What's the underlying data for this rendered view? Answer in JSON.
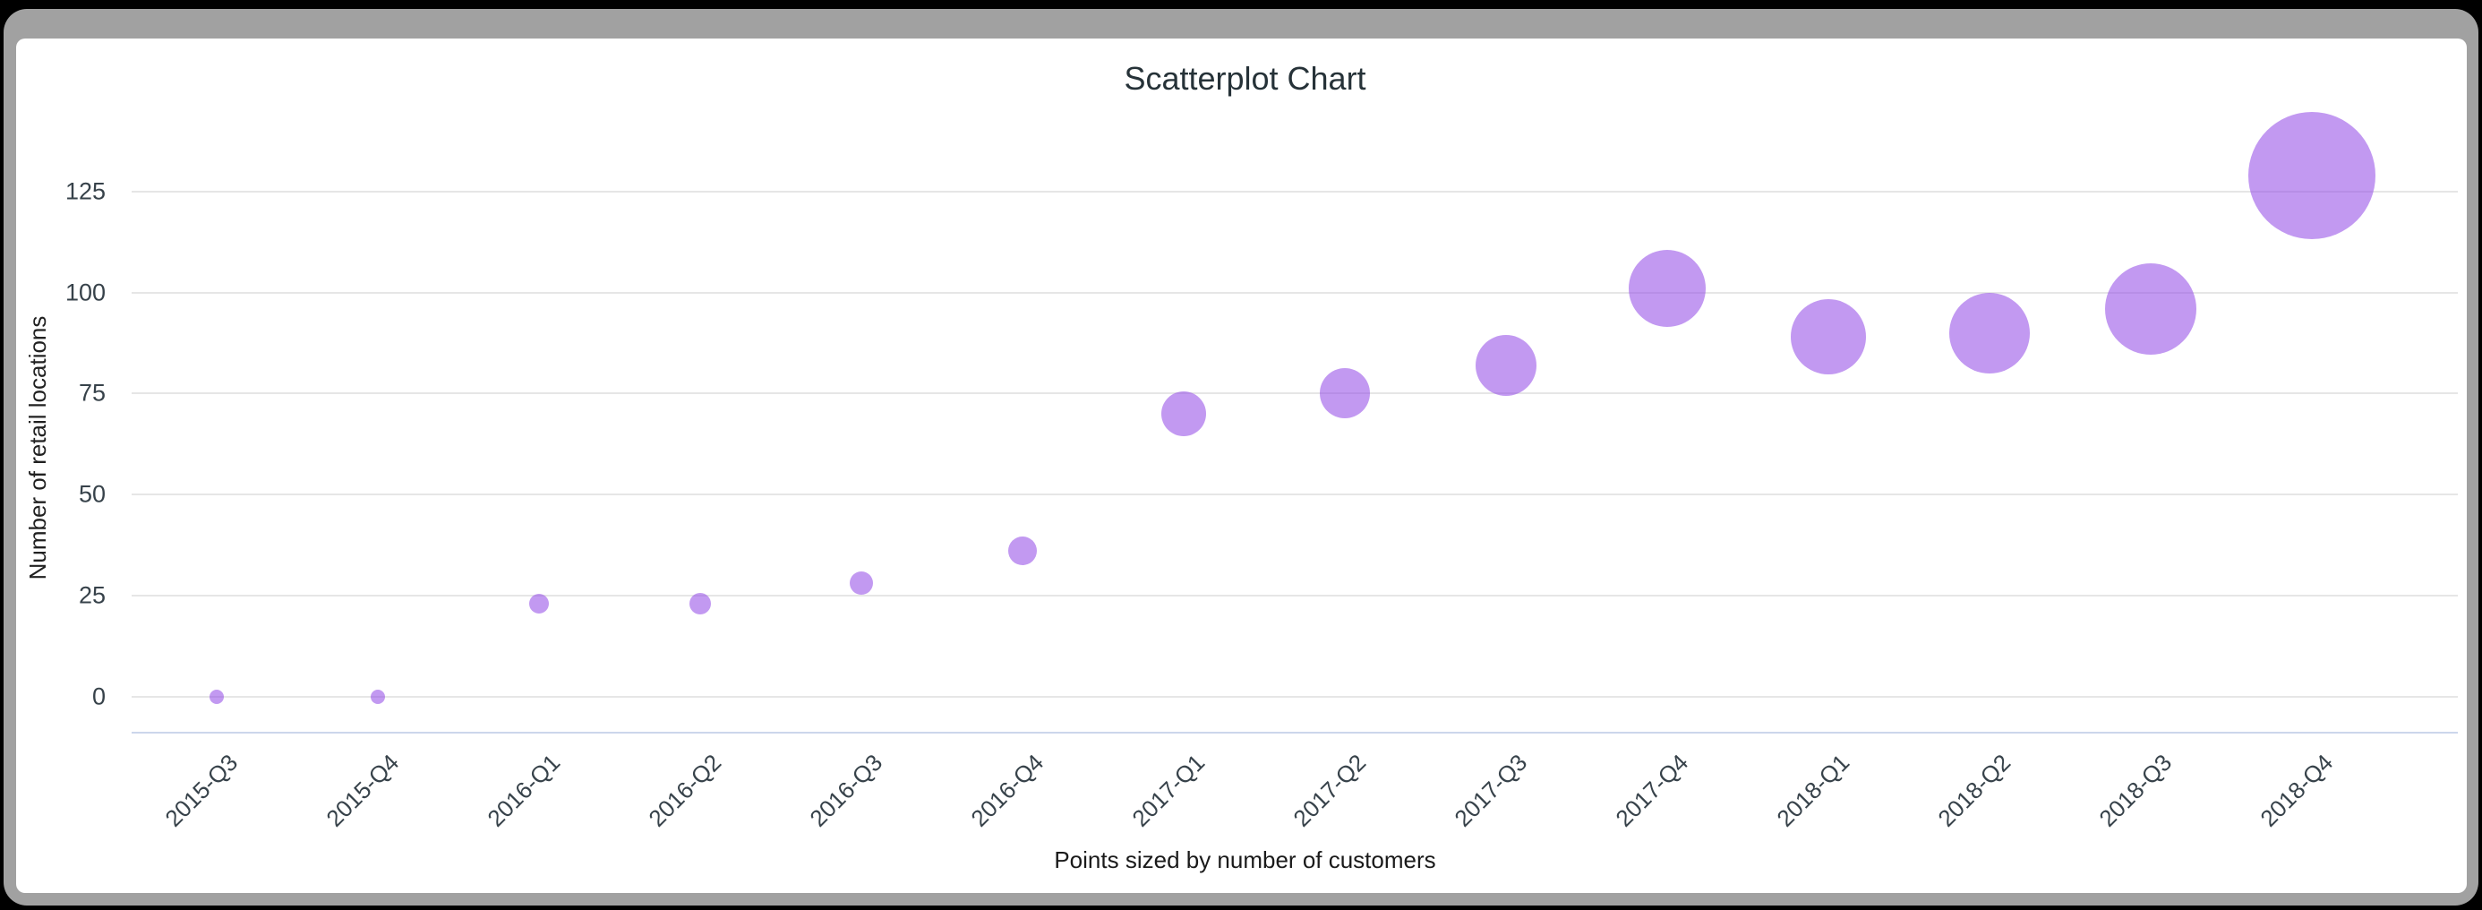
{
  "window": {
    "frame_color": "#a1a1a1",
    "panel_color": "#ffffff",
    "outer_background": "#000000"
  },
  "chart_data": {
    "type": "scatter",
    "title": "Scatterplot Chart",
    "subtitle": "Points sized by number of customers",
    "xlabel": "Points sized by number of customers",
    "ylabel": "Number of retail locations",
    "categories": [
      "2015-Q3",
      "2015-Q4",
      "2016-Q1",
      "2016-Q2",
      "2016-Q3",
      "2016-Q4",
      "2017-Q1",
      "2017-Q2",
      "2017-Q3",
      "2017-Q4",
      "2018-Q1",
      "2018-Q2",
      "2018-Q3",
      "2018-Q4"
    ],
    "y_ticks": [
      0,
      25,
      50,
      75,
      100,
      125
    ],
    "ylim": [
      0,
      138
    ],
    "grid": true,
    "legend": false,
    "size_encoding": "number of customers",
    "point_color": "#9349e6",
    "point_fill_opacity": 0.56,
    "gridline_color": "#e6e6e6",
    "axis_line_color": "#ccd6eb",
    "series": [
      {
        "name": "Number of retail locations",
        "points": [
          {
            "category": "2015-Q3",
            "y": 0,
            "radius_px": 8
          },
          {
            "category": "2015-Q4",
            "y": 0,
            "radius_px": 8
          },
          {
            "category": "2016-Q1",
            "y": 23,
            "radius_px": 11
          },
          {
            "category": "2016-Q2",
            "y": 23,
            "radius_px": 12
          },
          {
            "category": "2016-Q3",
            "y": 28,
            "radius_px": 13
          },
          {
            "category": "2016-Q4",
            "y": 36,
            "radius_px": 16
          },
          {
            "category": "2017-Q1",
            "y": 70,
            "radius_px": 25
          },
          {
            "category": "2017-Q2",
            "y": 75,
            "radius_px": 28
          },
          {
            "category": "2017-Q3",
            "y": 82,
            "radius_px": 34
          },
          {
            "category": "2017-Q4",
            "y": 101,
            "radius_px": 43
          },
          {
            "category": "2018-Q1",
            "y": 89,
            "radius_px": 42
          },
          {
            "category": "2018-Q2",
            "y": 90,
            "radius_px": 45
          },
          {
            "category": "2018-Q3",
            "y": 96,
            "radius_px": 51
          },
          {
            "category": "2018-Q4",
            "y": 129,
            "radius_px": 71
          }
        ]
      }
    ]
  }
}
